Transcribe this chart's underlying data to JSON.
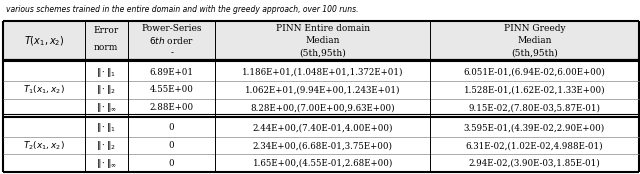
{
  "figsize": [
    6.4,
    1.74
  ],
  "dpi": 100,
  "top_text": "various schemes trained in the entire domain and with the greedy approach, over 100 runs.",
  "header": [
    [
      "$T(x_1,x_2)$",
      "Error\nnorm",
      "Power-Series\n$6th$ order\n-",
      "PINN Entire domain\nMedian\n(5th,95th)",
      "PINN Greedy\nMedian\n(5th,95th)"
    ]
  ],
  "t1_label": "$T_1(x_1,x_2)$",
  "t2_label": "$T_2(x_1,x_2)$",
  "t1_rows": [
    [
      "$\\|\\cdot\\|_1$",
      "6.89E+01",
      "1.186E+01,(1.048E+01,1.372E+01)",
      "6.051E-01,(6.94E-02,6.00E+00)"
    ],
    [
      "$\\|\\cdot\\|_2$",
      "4.55E+00",
      "1.062E+01,(9.94E+00,1.243E+01)",
      "1.528E-01,(1.62E-02,1.33E+00)"
    ],
    [
      "$\\|\\cdot\\|_\\infty$",
      "2.88E+00",
      "8.28E+00,(7.00E+00,9.63E+00)",
      "9.15E-02,(7.80E-03,5.87E-01)"
    ]
  ],
  "t2_rows": [
    [
      "$\\|\\cdot\\|_1$",
      "0",
      "2.44E+00,(7.40E-01,4.00E+00)",
      "3.595E-01,(4.39E-02,2.90E+00)"
    ],
    [
      "$\\|\\cdot\\|_2$",
      "0",
      "2.34E+00,(6.68E-01,3.75E+00)",
      "6.31E-02,(1.02E-02,4.988E-01)"
    ],
    [
      "$\\|\\cdot\\|_\\infty$",
      "0",
      "1.65E+00,(4.55E-01,2.68E+00)",
      "2.94E-02,(3.90E-03,1.85E-01)"
    ]
  ],
  "background_color": "#ffffff",
  "header_bg": "#e8e8e8"
}
